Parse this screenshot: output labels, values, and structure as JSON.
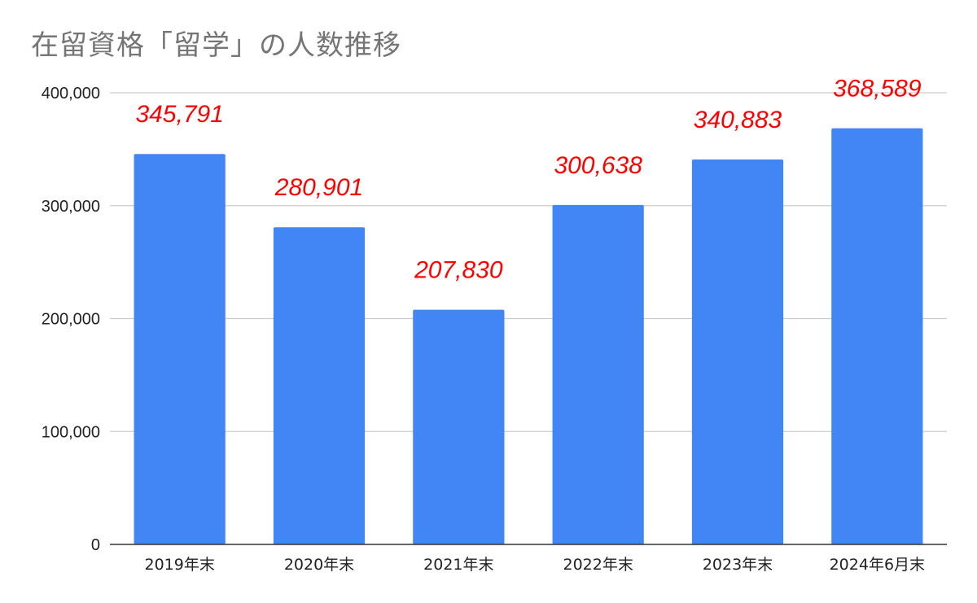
{
  "chart_data": {
    "type": "bar",
    "title": "在留資格「留学」の人数推移",
    "categories": [
      "2019年末",
      "2020年末",
      "2021年末",
      "2022年末",
      "2023年末",
      "2024年6月末"
    ],
    "values": [
      345791,
      280901,
      207830,
      300638,
      340883,
      368589
    ],
    "data_labels": [
      "345,791",
      "280,901",
      "207,830",
      "300,638",
      "340,883",
      "368,589"
    ],
    "yticks": [
      0,
      100000,
      200000,
      300000,
      400000
    ],
    "ytick_labels": [
      "0",
      "100,000",
      "200,000",
      "300,000",
      "400,000"
    ],
    "ylim": [
      0,
      400000
    ],
    "grid": true,
    "legend": "none",
    "bar_color": "#4285f4",
    "label_color": "#ff0000",
    "grid_color": "#cccccc",
    "xlabel": "",
    "ylabel": ""
  }
}
